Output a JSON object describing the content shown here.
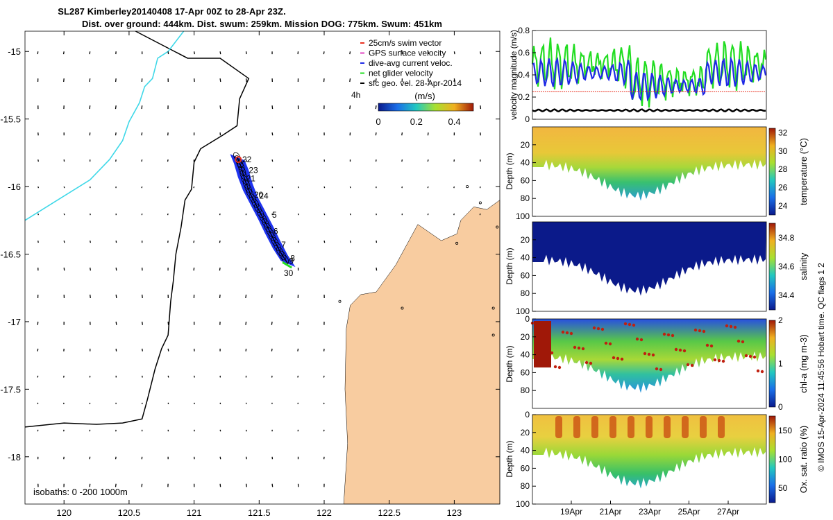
{
  "title_line1": "SL287 Kimberley20140408 17-Apr 00Z to 28-Apr 23Z.",
  "title_line2": "Dist. over ground: 444km. Dist. swum: 259km. Mission DOG: 775km. Swum: 451km",
  "copyright": "© IMOS 15-Apr-2024 11:45:56 Hobart time. QC flags 1  2",
  "colors": {
    "land": "#f8cca0",
    "track_fill": "#1f34f0",
    "coast": "#000000",
    "cyan_isobath": "#3fd8e8",
    "vel_green": "#22dd22",
    "vel_blue": "#1e28e6",
    "swim_red": "#e83020"
  },
  "chart_data": [
    {
      "type": "map",
      "xlim": [
        119.7,
        123.35
      ],
      "ylim": [
        -18.35,
        -14.85
      ],
      "x_ticks": [
        "120",
        "120.5",
        "121",
        "121.5",
        "122",
        "122.5",
        "123"
      ],
      "x_tick_values": [
        120,
        120.5,
        121,
        121.5,
        122,
        122.5,
        123
      ],
      "y_ticks": [
        "-15",
        "-15.5",
        "-16",
        "-16.5",
        "-17",
        "-17.5",
        "-18"
      ],
      "y_tick_values": [
        -15,
        -15.5,
        -16,
        -16.5,
        -17,
        -17.5,
        -18
      ],
      "legend": [
        {
          "label": "25cm/s swim vector",
          "color": "#e83020"
        },
        {
          "label": "GPS surface velocity",
          "color": "#e040c0"
        },
        {
          "label": "dive-avg current veloc.",
          "color": "#1e28e6"
        },
        {
          "label": "net glider velocity",
          "color": "#22dd22"
        },
        {
          "label": "sfc geo. vel. 28-Apr-2014",
          "color": "#000000"
        }
      ],
      "legend_note": "4h",
      "colorbar": {
        "label": "(m/s)",
        "ticks": [
          "0",
          "0.2",
          "0.4"
        ],
        "range": [
          0,
          0.5
        ]
      },
      "isobath_label": "isobaths: 0  -200  1000m",
      "track_labels": [
        {
          "text": "22",
          "lon": 121.37,
          "lat": -15.8
        },
        {
          "text": "23",
          "lon": 121.42,
          "lat": -15.88
        },
        {
          "text": "21",
          "lon": 121.4,
          "lat": -15.94
        },
        {
          "text": "20",
          "lon": 121.46,
          "lat": -16.06
        },
        {
          "text": "24",
          "lon": 121.5,
          "lat": -16.07
        },
        {
          "text": "5",
          "lon": 121.6,
          "lat": -16.21
        },
        {
          "text": "6",
          "lon": 121.61,
          "lat": -16.33
        },
        {
          "text": "7",
          "lon": 121.67,
          "lat": -16.43
        },
        {
          "text": "8",
          "lon": 121.74,
          "lat": -16.53
        },
        {
          "text": "9",
          "lon": 121.73,
          "lat": -16.55
        },
        {
          "text": "30",
          "lon": 121.69,
          "lat": -16.64
        }
      ],
      "track": [
        [
          121.33,
          -15.78
        ],
        [
          121.36,
          -15.85
        ],
        [
          121.39,
          -15.95
        ],
        [
          121.43,
          -16.05
        ],
        [
          121.49,
          -16.16
        ],
        [
          121.55,
          -16.27
        ],
        [
          121.6,
          -16.37
        ],
        [
          121.66,
          -16.48
        ],
        [
          121.72,
          -16.57
        ]
      ]
    },
    {
      "type": "line",
      "ylabel": "velocity magnitude (m/s)",
      "yticks": [
        "0",
        "0.2",
        "0.4",
        "0.6",
        "0.8"
      ],
      "ylim": [
        0,
        0.8
      ],
      "series": [
        {
          "name": "net glider velocity",
          "color": "#22dd22",
          "mean": 0.5,
          "amp": 0.2
        },
        {
          "name": "dive-avg current veloc.",
          "color": "#1e28e6",
          "mean": 0.42,
          "amp": 0.13
        },
        {
          "name": "25cm/s swim vector",
          "color": "#e83020",
          "mean": 0.25,
          "amp": 0.0
        },
        {
          "name": "sfc geo. vel. 28-Apr-2014",
          "color": "#000000",
          "mean": 0.08,
          "amp": 0.01
        }
      ]
    },
    {
      "type": "section",
      "ylabel": "Depth (m)",
      "yticks": [
        "20",
        "40",
        "60",
        "80",
        "100"
      ],
      "colorbar_label": "temperature (°C)",
      "colorbar_ticks": [
        "32",
        "30",
        "28",
        "26",
        "24"
      ],
      "colorbar_range": [
        23,
        32.5
      ]
    },
    {
      "type": "section",
      "ylabel": "Depth (m)",
      "yticks": [
        "20",
        "40",
        "60",
        "80",
        "100"
      ],
      "colorbar_label": "salinity",
      "colorbar_ticks": [
        "34.8",
        "34.6",
        "34.4"
      ],
      "colorbar_range": [
        34.3,
        34.9
      ]
    },
    {
      "type": "section",
      "ylabel": "Depth (m)",
      "yticks": [
        "0",
        "20",
        "40",
        "60",
        "80"
      ],
      "colorbar_label": "chl-a (mg m-3)",
      "colorbar_ticks": [
        "2",
        "1",
        "0"
      ],
      "colorbar_range": [
        0,
        2
      ]
    },
    {
      "type": "section",
      "ylabel": "Depth (m)",
      "yticks": [
        "0",
        "20",
        "40",
        "60",
        "80",
        "100"
      ],
      "colorbar_label": "Ox. sat. ratio (%)",
      "colorbar_ticks": [
        "150",
        "100",
        "50"
      ],
      "colorbar_range": [
        25,
        175
      ],
      "x_ticks": [
        "19Apr",
        "21Apr",
        "23Apr",
        "25Apr",
        "27Apr"
      ]
    }
  ]
}
